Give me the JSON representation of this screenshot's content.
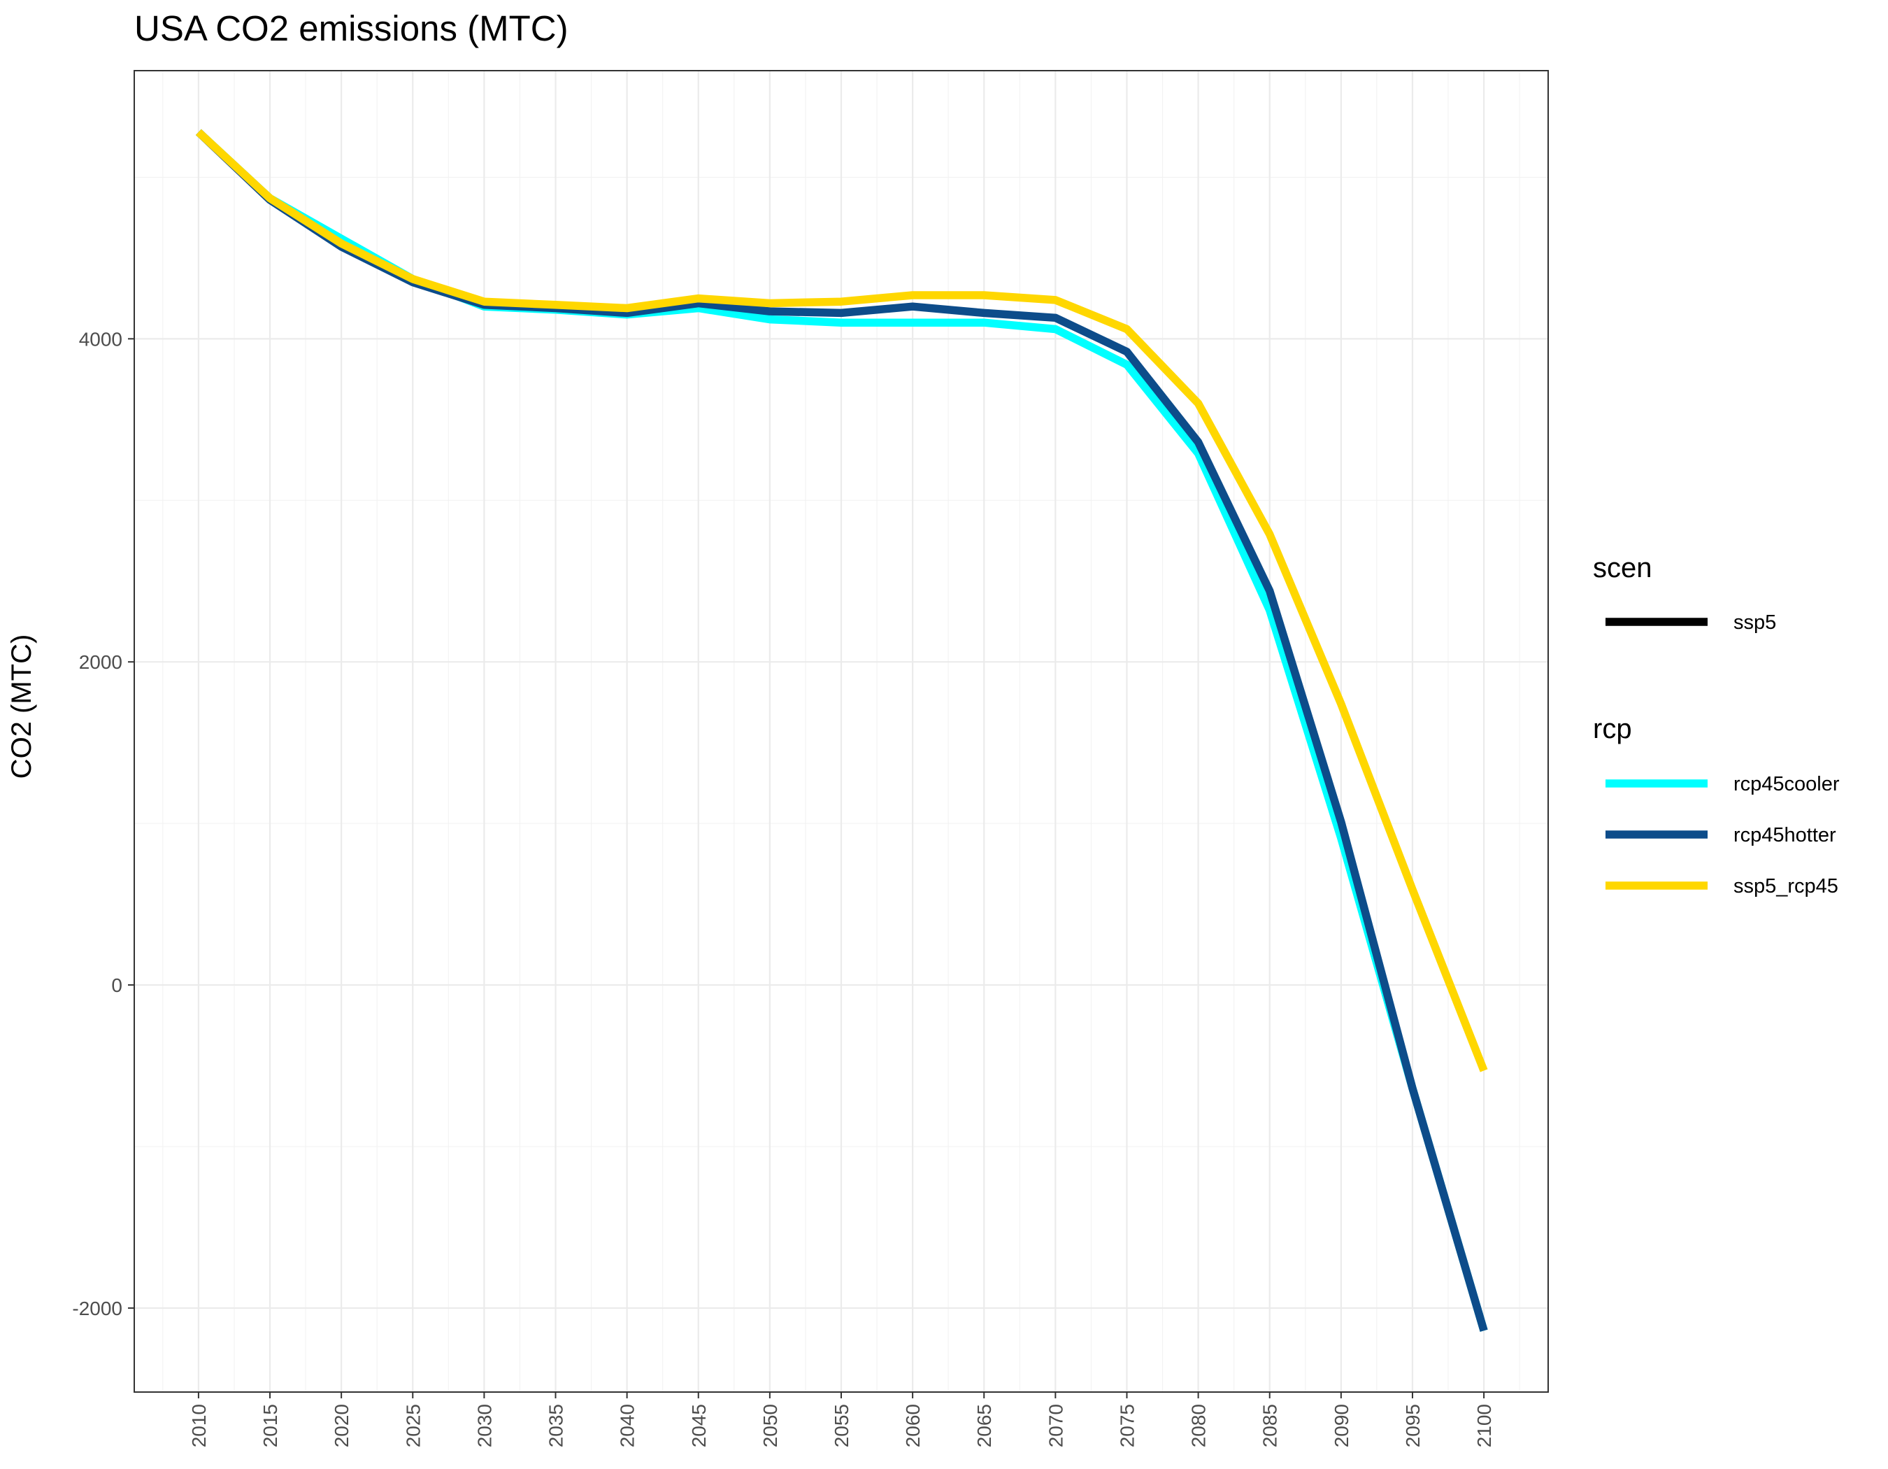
{
  "chart_data": {
    "type": "line",
    "title": "USA CO2 emissions (MTC)",
    "xlabel": "",
    "ylabel": "CO2 (MTC)",
    "x": [
      2010,
      2015,
      2020,
      2025,
      2030,
      2035,
      2040,
      2045,
      2050,
      2055,
      2060,
      2065,
      2070,
      2075,
      2080,
      2085,
      2090,
      2095,
      2100
    ],
    "x_tick_labels": [
      "2010",
      "2015",
      "2020",
      "2025",
      "2030",
      "2035",
      "2040",
      "2045",
      "2050",
      "2055",
      "2060",
      "2065",
      "2070",
      "2075",
      "2080",
      "2085",
      "2090",
      "2095",
      "2100"
    ],
    "xlim": [
      2005.5,
      2104.5
    ],
    "ylim": [
      -2520,
      5660
    ],
    "y_ticks": [
      -2000,
      0,
      2000,
      4000
    ],
    "y_tick_labels": [
      "-2000",
      "0",
      "2000",
      "4000"
    ],
    "grid": true,
    "legend_position": "right",
    "series": [
      {
        "name": "rcp45cooler",
        "color": "#00FFFF",
        "values": [
          5280,
          4870,
          4620,
          4370,
          4200,
          4180,
          4150,
          4190,
          4120,
          4100,
          4100,
          4100,
          4060,
          3840,
          3290,
          2320,
          910,
          -640,
          -2140
        ]
      },
      {
        "name": "rcp45hotter",
        "color": "#0D4C8A",
        "values": [
          5280,
          4860,
          4570,
          4350,
          4210,
          4190,
          4160,
          4220,
          4170,
          4160,
          4200,
          4160,
          4130,
          3920,
          3360,
          2440,
          1010,
          -640,
          -2140
        ]
      },
      {
        "name": "ssp5_rcp45",
        "color": "#FFD700",
        "values": [
          5280,
          4870,
          4590,
          4370,
          4230,
          4210,
          4190,
          4250,
          4220,
          4230,
          4270,
          4270,
          4240,
          4060,
          3600,
          2790,
          1740,
          590,
          -530
        ]
      }
    ],
    "legend": {
      "groups": [
        {
          "title": "scen",
          "entries": [
            {
              "label": "ssp5",
              "color": "#000000"
            }
          ]
        },
        {
          "title": "rcp",
          "entries": [
            {
              "label": "rcp45cooler",
              "color": "#00FFFF"
            },
            {
              "label": "rcp45hotter",
              "color": "#0D4C8A"
            },
            {
              "label": "ssp5_rcp45",
              "color": "#FFD700"
            }
          ]
        }
      ]
    }
  }
}
